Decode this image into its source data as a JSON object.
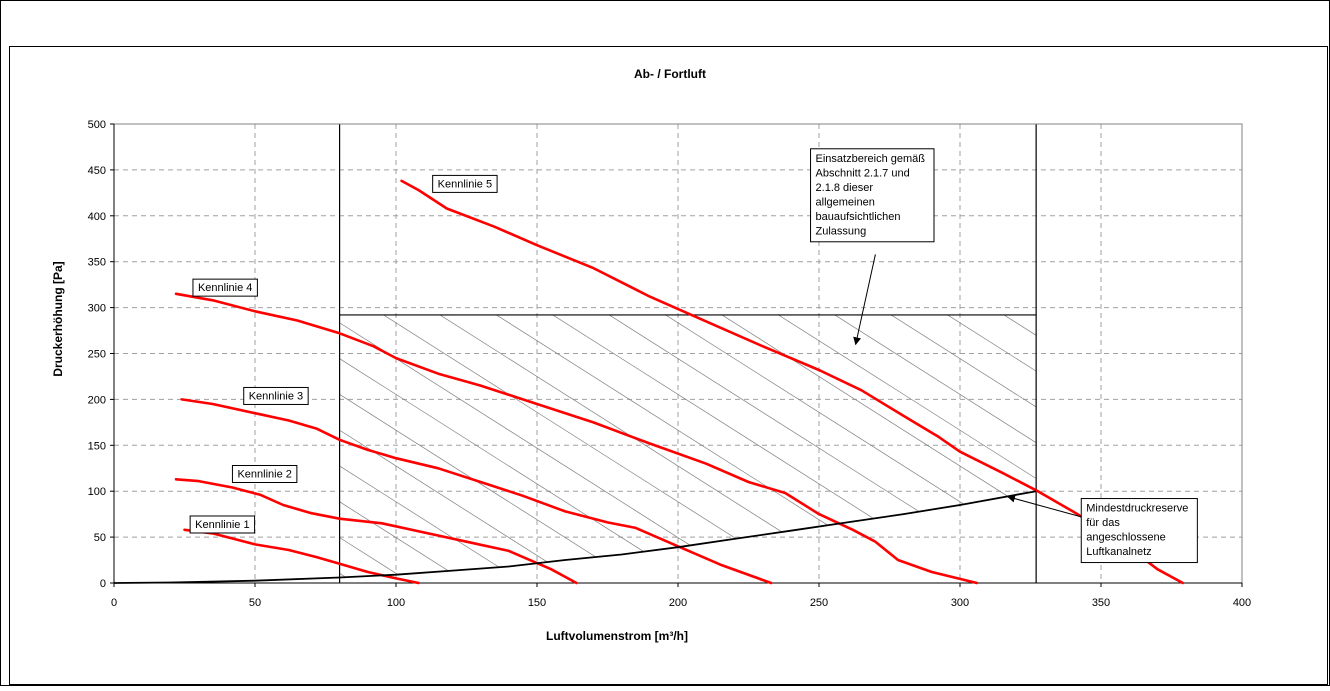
{
  "chart_data": {
    "type": "line",
    "title": "Ab- / Fortluft",
    "xlabel": "Luftvolumenstrom [m³/h]",
    "ylabel": "Druckerhöhung [Pa]",
    "xlim": [
      0,
      400
    ],
    "ylim": [
      0,
      500
    ],
    "xticks": [
      0,
      50,
      100,
      150,
      200,
      250,
      300,
      350,
      400
    ],
    "yticks": [
      0,
      50,
      100,
      150,
      200,
      250,
      300,
      350,
      400,
      450,
      500
    ],
    "grid": true,
    "colors": {
      "curve": "#ff0000",
      "reserve": "#000000",
      "grid": "#a0a0a0",
      "hatch": "#808080"
    },
    "series": [
      {
        "name": "Kennlinie 1",
        "label": "Kennlinie 1",
        "label_at": [
          27,
          73
        ],
        "points": [
          [
            25,
            58
          ],
          [
            35,
            54
          ],
          [
            50,
            42
          ],
          [
            62,
            36
          ],
          [
            72,
            28
          ],
          [
            80,
            21
          ],
          [
            90,
            12
          ],
          [
            100,
            5
          ],
          [
            108,
            0
          ]
        ]
      },
      {
        "name": "Kennlinie 2",
        "label": "Kennlinie 2",
        "label_at": [
          42,
          128
        ],
        "points": [
          [
            22,
            113
          ],
          [
            30,
            111
          ],
          [
            42,
            104
          ],
          [
            52,
            96
          ],
          [
            60,
            85
          ],
          [
            70,
            76
          ],
          [
            80,
            70
          ],
          [
            95,
            65
          ],
          [
            110,
            55
          ],
          [
            125,
            45
          ],
          [
            140,
            35
          ],
          [
            155,
            15
          ],
          [
            164,
            0
          ]
        ]
      },
      {
        "name": "Kennlinie 3",
        "label": "Kennlinie 3",
        "label_at": [
          46,
          213
        ],
        "points": [
          [
            24,
            200
          ],
          [
            35,
            195
          ],
          [
            50,
            185
          ],
          [
            62,
            177
          ],
          [
            72,
            168
          ],
          [
            80,
            156
          ],
          [
            90,
            145
          ],
          [
            100,
            136
          ],
          [
            115,
            125
          ],
          [
            130,
            110
          ],
          [
            145,
            95
          ],
          [
            160,
            78
          ],
          [
            175,
            66
          ],
          [
            185,
            60
          ],
          [
            200,
            40
          ],
          [
            215,
            20
          ],
          [
            233,
            0
          ]
        ]
      },
      {
        "name": "Kennlinie 4",
        "label": "Kennlinie 4",
        "label_at": [
          28,
          331
        ],
        "points": [
          [
            22,
            315
          ],
          [
            35,
            308
          ],
          [
            50,
            296
          ],
          [
            65,
            286
          ],
          [
            80,
            272
          ],
          [
            92,
            258
          ],
          [
            100,
            245
          ],
          [
            115,
            228
          ],
          [
            130,
            215
          ],
          [
            150,
            195
          ],
          [
            170,
            175
          ],
          [
            190,
            152
          ],
          [
            210,
            130
          ],
          [
            225,
            110
          ],
          [
            238,
            98
          ],
          [
            250,
            75
          ],
          [
            262,
            58
          ],
          [
            270,
            45
          ],
          [
            278,
            25
          ],
          [
            290,
            12
          ],
          [
            306,
            0
          ]
        ]
      },
      {
        "name": "Kennlinie 5",
        "label": "Kennlinie 5",
        "label_at": [
          113,
          444
        ],
        "points": [
          [
            102,
            438
          ],
          [
            108,
            428
          ],
          [
            118,
            408
          ],
          [
            135,
            388
          ],
          [
            150,
            368
          ],
          [
            170,
            343
          ],
          [
            190,
            312
          ],
          [
            210,
            285
          ],
          [
            230,
            258
          ],
          [
            250,
            232
          ],
          [
            265,
            210
          ],
          [
            280,
            182
          ],
          [
            292,
            160
          ],
          [
            300,
            143
          ],
          [
            315,
            120
          ],
          [
            327,
            101
          ],
          [
            340,
            78
          ],
          [
            355,
            50
          ],
          [
            370,
            15
          ],
          [
            379,
            0
          ]
        ]
      }
    ],
    "reserve_curve": {
      "points": [
        [
          0,
          0
        ],
        [
          20,
          0.5
        ],
        [
          50,
          2.5
        ],
        [
          80,
          6
        ],
        [
          100,
          9
        ],
        [
          120,
          13.5
        ],
        [
          140,
          18
        ],
        [
          160,
          25
        ],
        [
          180,
          31
        ],
        [
          200,
          39
        ],
        [
          220,
          48
        ],
        [
          240,
          57
        ],
        [
          260,
          66
        ],
        [
          280,
          75
        ],
        [
          300,
          85
        ],
        [
          327,
          100
        ]
      ]
    },
    "region": {
      "x_range": [
        80,
        327
      ],
      "y_max": 292,
      "hatch_spacing_x": 20
    },
    "annotations": [
      {
        "id": "einsatzbereich",
        "lines": [
          "Einsatzbereich  gemäß",
          "Abschnitt 2.1.7 und",
          "2.1.8 dieser",
          "allgemeinen",
          "bauaufsichtlichen",
          "Zulassung"
        ],
        "box_at": [
          247,
          473
        ],
        "arrow_from": [
          270,
          358
        ],
        "arrow_to": [
          263,
          260
        ]
      },
      {
        "id": "mindestdruckreserve",
        "lines": [
          "Mindestdruckreserve",
          "für das",
          "angeschlossene",
          "Luftkanalnetz"
        ],
        "box_at": [
          343,
          92
        ],
        "arrow_from": [
          343,
          72
        ],
        "arrow_to": [
          317,
          94
        ]
      }
    ]
  }
}
